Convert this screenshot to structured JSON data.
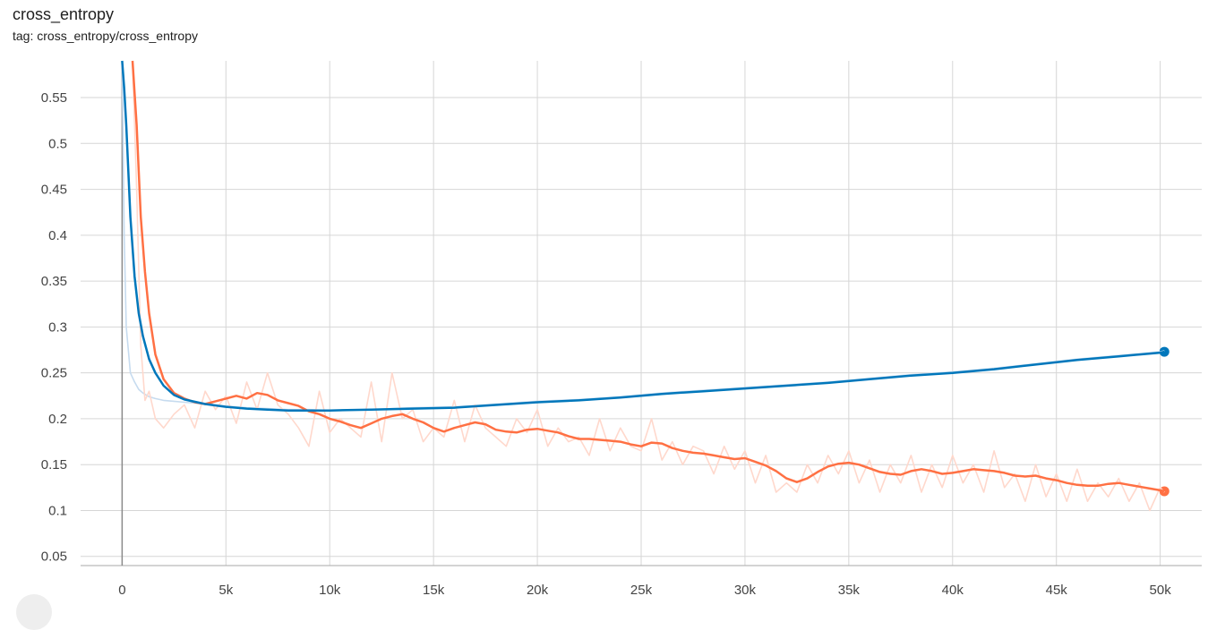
{
  "header": {
    "title": "cross_entropy",
    "tag": "tag: cross_entropy/cross_entropy"
  },
  "chart_data": {
    "type": "line",
    "title": "cross_entropy",
    "subtitle": "tag: cross_entropy/cross_entropy",
    "xlabel": "",
    "ylabel": "",
    "xlim": [
      -2000,
      52000
    ],
    "ylim": [
      0.04,
      0.59
    ],
    "x_ticks": [
      0,
      5000,
      10000,
      15000,
      20000,
      25000,
      30000,
      35000,
      40000,
      45000,
      50000
    ],
    "x_tick_labels": [
      "0",
      "5k",
      "10k",
      "15k",
      "20k",
      "25k",
      "30k",
      "35k",
      "40k",
      "45k",
      "50k"
    ],
    "y_ticks": [
      0.05,
      0.1,
      0.15,
      0.2,
      0.25,
      0.3,
      0.35,
      0.4,
      0.45,
      0.5,
      0.55
    ],
    "y_tick_labels": [
      "0.05",
      "0.1",
      "0.15",
      "0.2",
      "0.25",
      "0.3",
      "0.35",
      "0.4",
      "0.45",
      "0.5",
      "0.55"
    ],
    "grid": true,
    "series": [
      {
        "color": "#0077bb",
        "raw_color": "#c6dbef",
        "end_marker": true,
        "x": [
          0,
          100,
          200,
          400,
          600,
          800,
          1000,
          1300,
          1600,
          2000,
          2500,
          3000,
          4000,
          5000,
          6000,
          7000,
          8000,
          9000,
          10000,
          12000,
          14000,
          16000,
          18000,
          20000,
          22000,
          24000,
          26000,
          28000,
          30000,
          32000,
          34000,
          36000,
          38000,
          40000,
          42000,
          44000,
          46000,
          48000,
          50000,
          50200
        ],
        "smoothed": [
          0.59,
          0.56,
          0.52,
          0.42,
          0.355,
          0.315,
          0.29,
          0.265,
          0.25,
          0.236,
          0.226,
          0.221,
          0.216,
          0.213,
          0.211,
          0.21,
          0.209,
          0.209,
          0.209,
          0.21,
          0.211,
          0.212,
          0.215,
          0.218,
          0.22,
          0.223,
          0.227,
          0.23,
          0.233,
          0.236,
          0.239,
          0.243,
          0.247,
          0.25,
          0.254,
          0.259,
          0.264,
          0.268,
          0.272,
          0.273
        ],
        "raw": [
          0.59,
          0.4,
          0.3,
          0.25,
          0.24,
          0.232,
          0.228,
          0.224,
          0.222,
          0.22,
          0.219,
          0.218,
          0.216,
          0.214,
          0.212,
          0.211,
          0.21,
          0.21,
          0.209,
          0.21,
          0.212,
          0.213,
          0.216,
          0.219,
          0.221,
          0.224,
          0.228,
          0.231,
          0.234,
          0.237,
          0.24,
          0.244,
          0.248,
          0.251,
          0.255,
          0.26,
          0.265,
          0.269,
          0.273,
          0.274
        ]
      },
      {
        "color": "#ff7043",
        "raw_color": "#ffd8cc",
        "end_marker": true,
        "x": [
          500,
          700,
          900,
          1100,
          1300,
          1600,
          2000,
          2500,
          3000,
          3500,
          4000,
          4500,
          5000,
          5500,
          6000,
          6500,
          7000,
          7500,
          8000,
          8500,
          9000,
          9500,
          10000,
          10500,
          11000,
          11500,
          12000,
          12500,
          13000,
          13500,
          14000,
          14500,
          15000,
          15500,
          16000,
          16500,
          17000,
          17500,
          18000,
          18500,
          19000,
          19500,
          20000,
          20500,
          21000,
          21500,
          22000,
          22500,
          23000,
          23500,
          24000,
          24500,
          25000,
          25500,
          26000,
          26500,
          27000,
          27500,
          28000,
          28500,
          29000,
          29500,
          30000,
          30500,
          31000,
          31500,
          32000,
          32500,
          33000,
          33500,
          34000,
          34500,
          35000,
          35500,
          36000,
          36500,
          37000,
          37500,
          38000,
          38500,
          39000,
          39500,
          40000,
          40500,
          41000,
          41500,
          42000,
          42500,
          43000,
          43500,
          44000,
          44500,
          45000,
          45500,
          46000,
          46500,
          47000,
          47500,
          48000,
          48500,
          49000,
          49500,
          50000,
          50200
        ],
        "smoothed": [
          0.59,
          0.52,
          0.42,
          0.36,
          0.315,
          0.27,
          0.243,
          0.228,
          0.222,
          0.218,
          0.216,
          0.219,
          0.222,
          0.225,
          0.222,
          0.228,
          0.226,
          0.22,
          0.217,
          0.214,
          0.208,
          0.205,
          0.2,
          0.197,
          0.193,
          0.19,
          0.195,
          0.2,
          0.203,
          0.205,
          0.2,
          0.196,
          0.19,
          0.186,
          0.19,
          0.193,
          0.196,
          0.194,
          0.188,
          0.186,
          0.185,
          0.188,
          0.189,
          0.187,
          0.185,
          0.181,
          0.178,
          0.178,
          0.177,
          0.176,
          0.175,
          0.172,
          0.17,
          0.174,
          0.173,
          0.168,
          0.165,
          0.163,
          0.162,
          0.16,
          0.158,
          0.156,
          0.157,
          0.153,
          0.149,
          0.143,
          0.135,
          0.131,
          0.135,
          0.142,
          0.148,
          0.151,
          0.152,
          0.15,
          0.146,
          0.142,
          0.14,
          0.139,
          0.143,
          0.145,
          0.143,
          0.14,
          0.141,
          0.143,
          0.145,
          0.144,
          0.143,
          0.141,
          0.138,
          0.137,
          0.138,
          0.135,
          0.133,
          0.13,
          0.128,
          0.127,
          0.127,
          0.129,
          0.13,
          0.128,
          0.126,
          0.124,
          0.122,
          0.121
        ],
        "raw": [
          0.59,
          0.45,
          0.28,
          0.22,
          0.23,
          0.2,
          0.19,
          0.205,
          0.215,
          0.19,
          0.23,
          0.21,
          0.225,
          0.195,
          0.24,
          0.21,
          0.25,
          0.215,
          0.205,
          0.19,
          0.17,
          0.23,
          0.185,
          0.2,
          0.19,
          0.18,
          0.24,
          0.175,
          0.25,
          0.2,
          0.21,
          0.175,
          0.19,
          0.18,
          0.22,
          0.175,
          0.215,
          0.19,
          0.18,
          0.17,
          0.2,
          0.185,
          0.21,
          0.17,
          0.19,
          0.175,
          0.18,
          0.16,
          0.2,
          0.165,
          0.19,
          0.17,
          0.165,
          0.2,
          0.155,
          0.175,
          0.15,
          0.17,
          0.165,
          0.14,
          0.17,
          0.145,
          0.165,
          0.13,
          0.16,
          0.12,
          0.13,
          0.12,
          0.15,
          0.13,
          0.16,
          0.14,
          0.165,
          0.13,
          0.155,
          0.12,
          0.15,
          0.13,
          0.16,
          0.12,
          0.15,
          0.125,
          0.16,
          0.13,
          0.15,
          0.12,
          0.165,
          0.125,
          0.14,
          0.11,
          0.15,
          0.115,
          0.14,
          0.11,
          0.145,
          0.11,
          0.13,
          0.115,
          0.135,
          0.11,
          0.13,
          0.1,
          0.125,
          0.12
        ]
      }
    ]
  }
}
